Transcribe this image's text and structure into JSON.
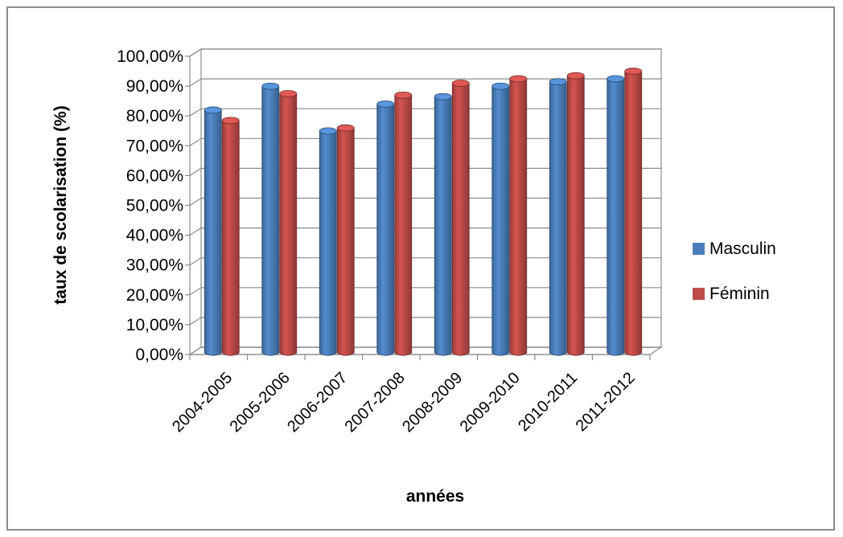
{
  "chart_data": {
    "type": "bar",
    "style": "3d-clustered-column",
    "categories": [
      "2004-2005",
      "2005-2006",
      "2006-2007",
      "2007-2008",
      "2008-2009",
      "2009-2010",
      "2010-2011",
      "2011-2012"
    ],
    "series": [
      {
        "name": "Masculin",
        "color": "#4a7ebb",
        "values": [
          82.5,
          90.5,
          75.5,
          84.5,
          87.0,
          90.5,
          92.0,
          93.0
        ]
      },
      {
        "name": "Féminin",
        "color": "#be4b48",
        "values": [
          79.0,
          88.0,
          76.5,
          87.5,
          91.5,
          93.0,
          94.0,
          95.5
        ]
      }
    ],
    "xlabel": "années",
    "ylabel": "taux de scolarisation (%)",
    "ylim": [
      0,
      100
    ],
    "y_ticks": [
      "0,00%",
      "10,00%",
      "20,00%",
      "30,00%",
      "40,00%",
      "50,00%",
      "60,00%",
      "70,00%",
      "80,00%",
      "90,00%",
      "100,00%"
    ],
    "grid": true,
    "legend_position": "right"
  }
}
